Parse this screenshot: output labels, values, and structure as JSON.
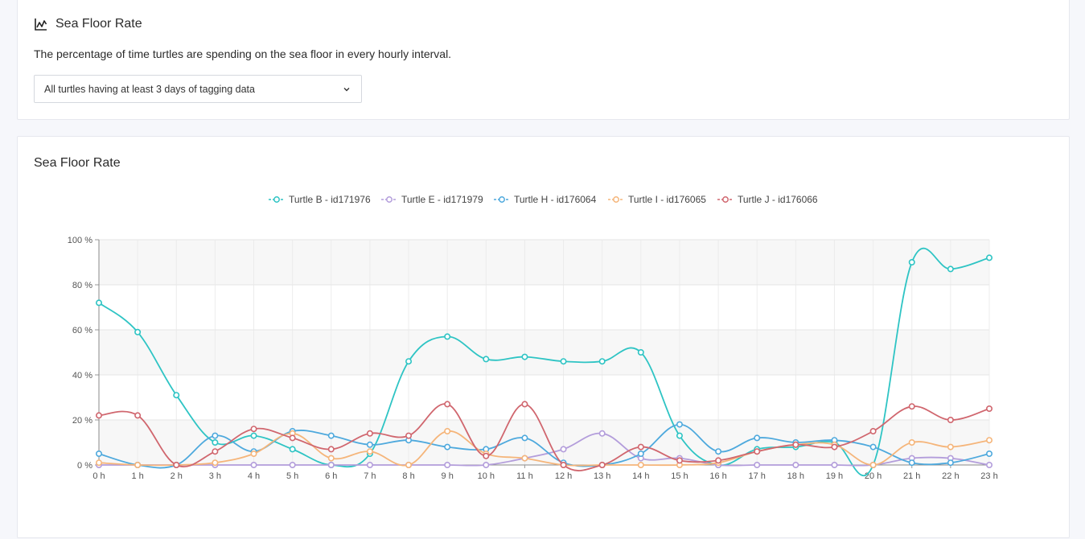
{
  "filter_card": {
    "title": "Sea Floor Rate",
    "title_icon": "line-chart-icon",
    "description": "The percentage of time turtles are spending on the sea floor in every hourly interval.",
    "select_value": "All turtles having at least 3 days of tagging data",
    "select_icon": "chevron-down-icon"
  },
  "chart_card": {
    "title": "Sea Floor Rate"
  },
  "chart_data": {
    "type": "line",
    "title": "Sea Floor Rate",
    "xlabel": "",
    "ylabel": "",
    "categories": [
      "0 h",
      "1 h",
      "2 h",
      "3 h",
      "4 h",
      "5 h",
      "6 h",
      "7 h",
      "8 h",
      "9 h",
      "10 h",
      "11 h",
      "12 h",
      "13 h",
      "14 h",
      "15 h",
      "16 h",
      "17 h",
      "18 h",
      "19 h",
      "20 h",
      "21 h",
      "22 h",
      "23 h"
    ],
    "ylim": [
      0,
      100
    ],
    "yticks": [
      "0 %",
      "20 %",
      "40 %",
      "60 %",
      "80 %",
      "100 %"
    ],
    "grid": true,
    "legend_position": "top-center",
    "series": [
      {
        "name": "Turtle B - id171976",
        "color": "#2ec4c4",
        "values": [
          72,
          59,
          31,
          10,
          13,
          7,
          0,
          5,
          46,
          57,
          47,
          48,
          46,
          46,
          50,
          13,
          0,
          7,
          8,
          10,
          0,
          90,
          87,
          92
        ]
      },
      {
        "name": "Turtle E - id171979",
        "color": "#b39ddb",
        "values": [
          0,
          0,
          0,
          0,
          0,
          0,
          0,
          0,
          0,
          0,
          0,
          3,
          7,
          14,
          3,
          3,
          0,
          0,
          0,
          0,
          0,
          3,
          3,
          0
        ]
      },
      {
        "name": "Turtle H - id176064",
        "color": "#4ea9dd",
        "values": [
          5,
          0,
          0,
          13,
          6,
          15,
          13,
          9,
          11,
          8,
          7,
          12,
          1,
          0,
          5,
          18,
          6,
          12,
          10,
          11,
          8,
          1,
          1,
          5
        ]
      },
      {
        "name": "Turtle I - id176065",
        "color": "#f5b57a",
        "values": [
          1,
          0,
          0,
          1,
          5,
          14,
          3,
          6,
          0,
          15,
          5,
          3,
          0,
          0,
          0,
          0,
          1,
          6,
          9,
          9,
          0,
          10,
          8,
          11
        ]
      },
      {
        "name": "Turtle J - id176066",
        "color": "#d0666e",
        "values": [
          22,
          22,
          0,
          6,
          16,
          12,
          7,
          14,
          13,
          27,
          4,
          27,
          0,
          0,
          8,
          2,
          2,
          6,
          9,
          8,
          15,
          26,
          20,
          25
        ]
      }
    ]
  }
}
